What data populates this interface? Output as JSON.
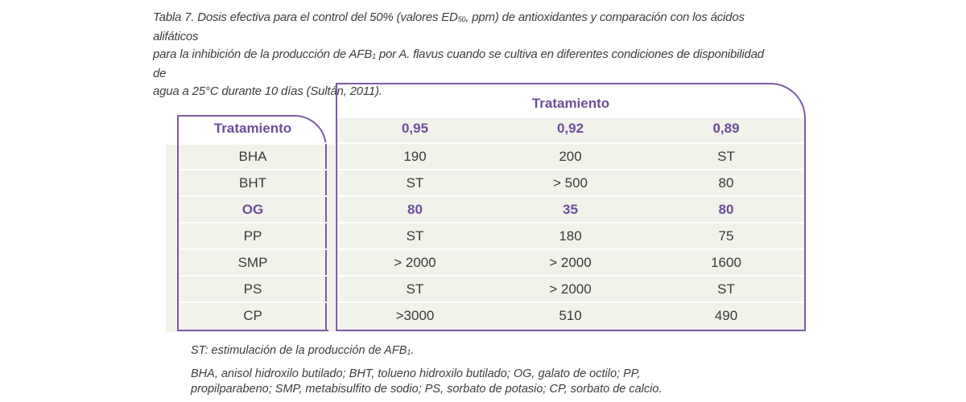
{
  "caption": {
    "line1": "Tabla 7. Dosis efectiva para el control del 50% (valores ED",
    "line1_sub": "50",
    "line1_rest": ", ppm) de antioxidantes y comparación con los ácidos alifáticos",
    "line2": "para la inhibición de la producción de AFB",
    "line2_sub": "1",
    "line2_rest": " por A. flavus cuando se cultiva en diferentes condiciones de disponibilidad de",
    "line3": "agua a 25°C durante 10 días (Sultán, 2011)."
  },
  "table": {
    "group_header": "Tratamiento",
    "row_header": "Tratamiento",
    "columns": [
      "0,95",
      "0,92",
      "0,89"
    ],
    "rows": [
      {
        "name": "BHA",
        "values": [
          "190",
          "200",
          "ST"
        ],
        "highlight": false
      },
      {
        "name": "BHT",
        "values": [
          "ST",
          "> 500",
          "80"
        ],
        "highlight": false
      },
      {
        "name": "OG",
        "values": [
          "80",
          "35",
          "80"
        ],
        "highlight": true
      },
      {
        "name": "PP",
        "values": [
          "ST",
          "180",
          "75"
        ],
        "highlight": false
      },
      {
        "name": "SMP",
        "values": [
          "> 2000",
          "> 2000",
          "1600"
        ],
        "highlight": false
      },
      {
        "name": "PS",
        "values": [
          "ST",
          "> 2000",
          "ST"
        ],
        "highlight": false
      },
      {
        "name": "CP",
        "values": [
          ">3000",
          "510",
          "490"
        ],
        "highlight": false
      }
    ]
  },
  "notes": {
    "st_text": "ST: estimulación de la producción de AFB",
    "st_sub": "1",
    "st_end": ".",
    "abbrev_line1": "BHA, anisol hidroxilo butilado; BHT, tolueno hidroxilo butilado; OG, galato de octilo; PP,",
    "abbrev_line2": "propilparabeno; SMP, metabisulfito de sodio; PS, sorbato de potasio; CP, sorbato de calcio."
  },
  "colors": {
    "accent": "#7d5aa6",
    "highlight_text": "#6b4d9a",
    "cell_fill": "#f1f2ea"
  }
}
